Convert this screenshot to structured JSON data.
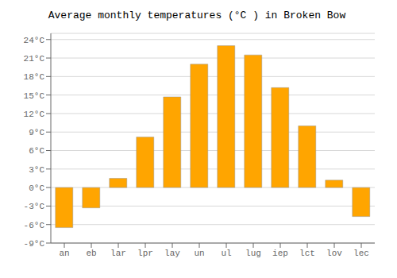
{
  "chart_data": {
    "type": "bar",
    "title": "Average monthly temperatures (°C ) in Broken Bow",
    "categories": [
      "an",
      "eb",
      "lar",
      "lpr",
      "lay",
      "un",
      "ul",
      "lug",
      "iep",
      "lct",
      "lov",
      "lec"
    ],
    "values": [
      -6.5,
      -3.3,
      1.5,
      8.2,
      14.7,
      20.0,
      23.0,
      21.5,
      16.2,
      10.0,
      1.2,
      -4.7
    ],
    "color": "#FFA500",
    "ylim": [
      -9,
      25
    ],
    "yticks": [
      {
        "value": -9,
        "label": "-9°C"
      },
      {
        "value": -6,
        "label": "-6°C"
      },
      {
        "value": -3,
        "label": "-3°C"
      },
      {
        "value": 0,
        "label": "0°C"
      },
      {
        "value": 3,
        "label": "3°C"
      },
      {
        "value": 6,
        "label": "6°C"
      },
      {
        "value": 9,
        "label": "9°C"
      },
      {
        "value": 12,
        "label": "12°C"
      },
      {
        "value": 15,
        "label": "15°C"
      },
      {
        "value": 18,
        "label": "18°C"
      },
      {
        "value": 21,
        "label": "21°C"
      },
      {
        "value": 24,
        "label": "24°C"
      }
    ],
    "grid": true
  }
}
